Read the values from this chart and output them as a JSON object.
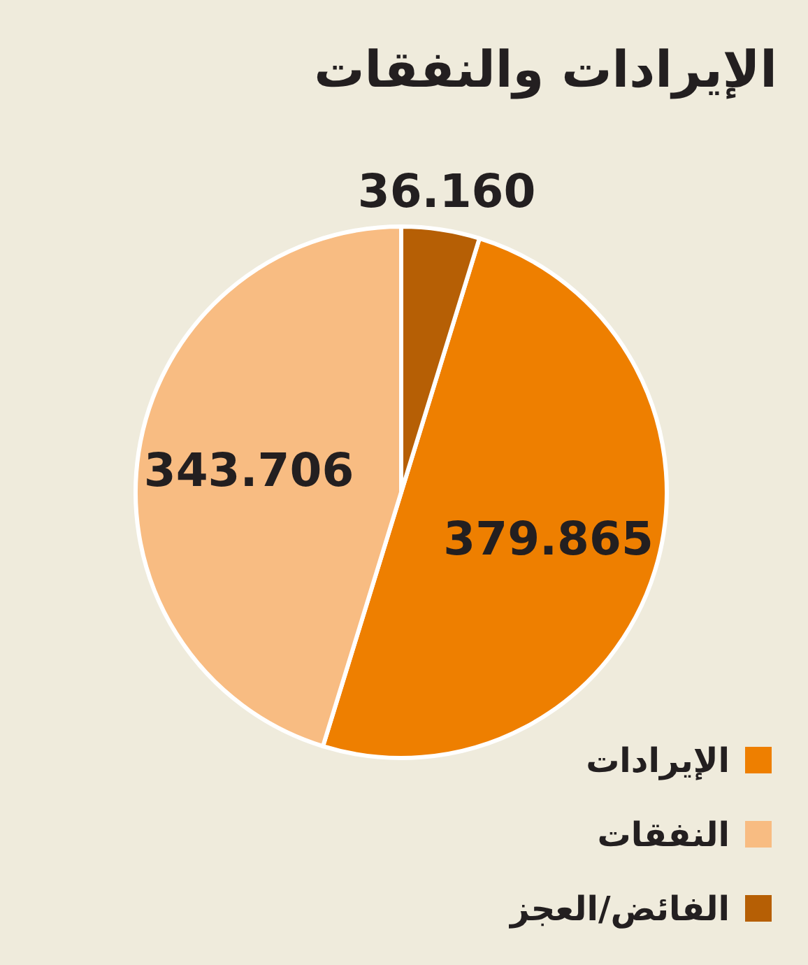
{
  "chart_data": {
    "type": "pie",
    "title": "الإيرادات والنفقات",
    "categories": [
      "الإيرادات",
      "النفقات",
      "الفائض/العجز"
    ],
    "values": [
      379.865,
      343.706,
      36.16
    ],
    "colors": [
      "#ee7f00",
      "#f8bc82",
      "#b65f05"
    ],
    "value_labels": [
      "379.865",
      "343.706",
      "36.160"
    ],
    "legend": "bottom right"
  }
}
